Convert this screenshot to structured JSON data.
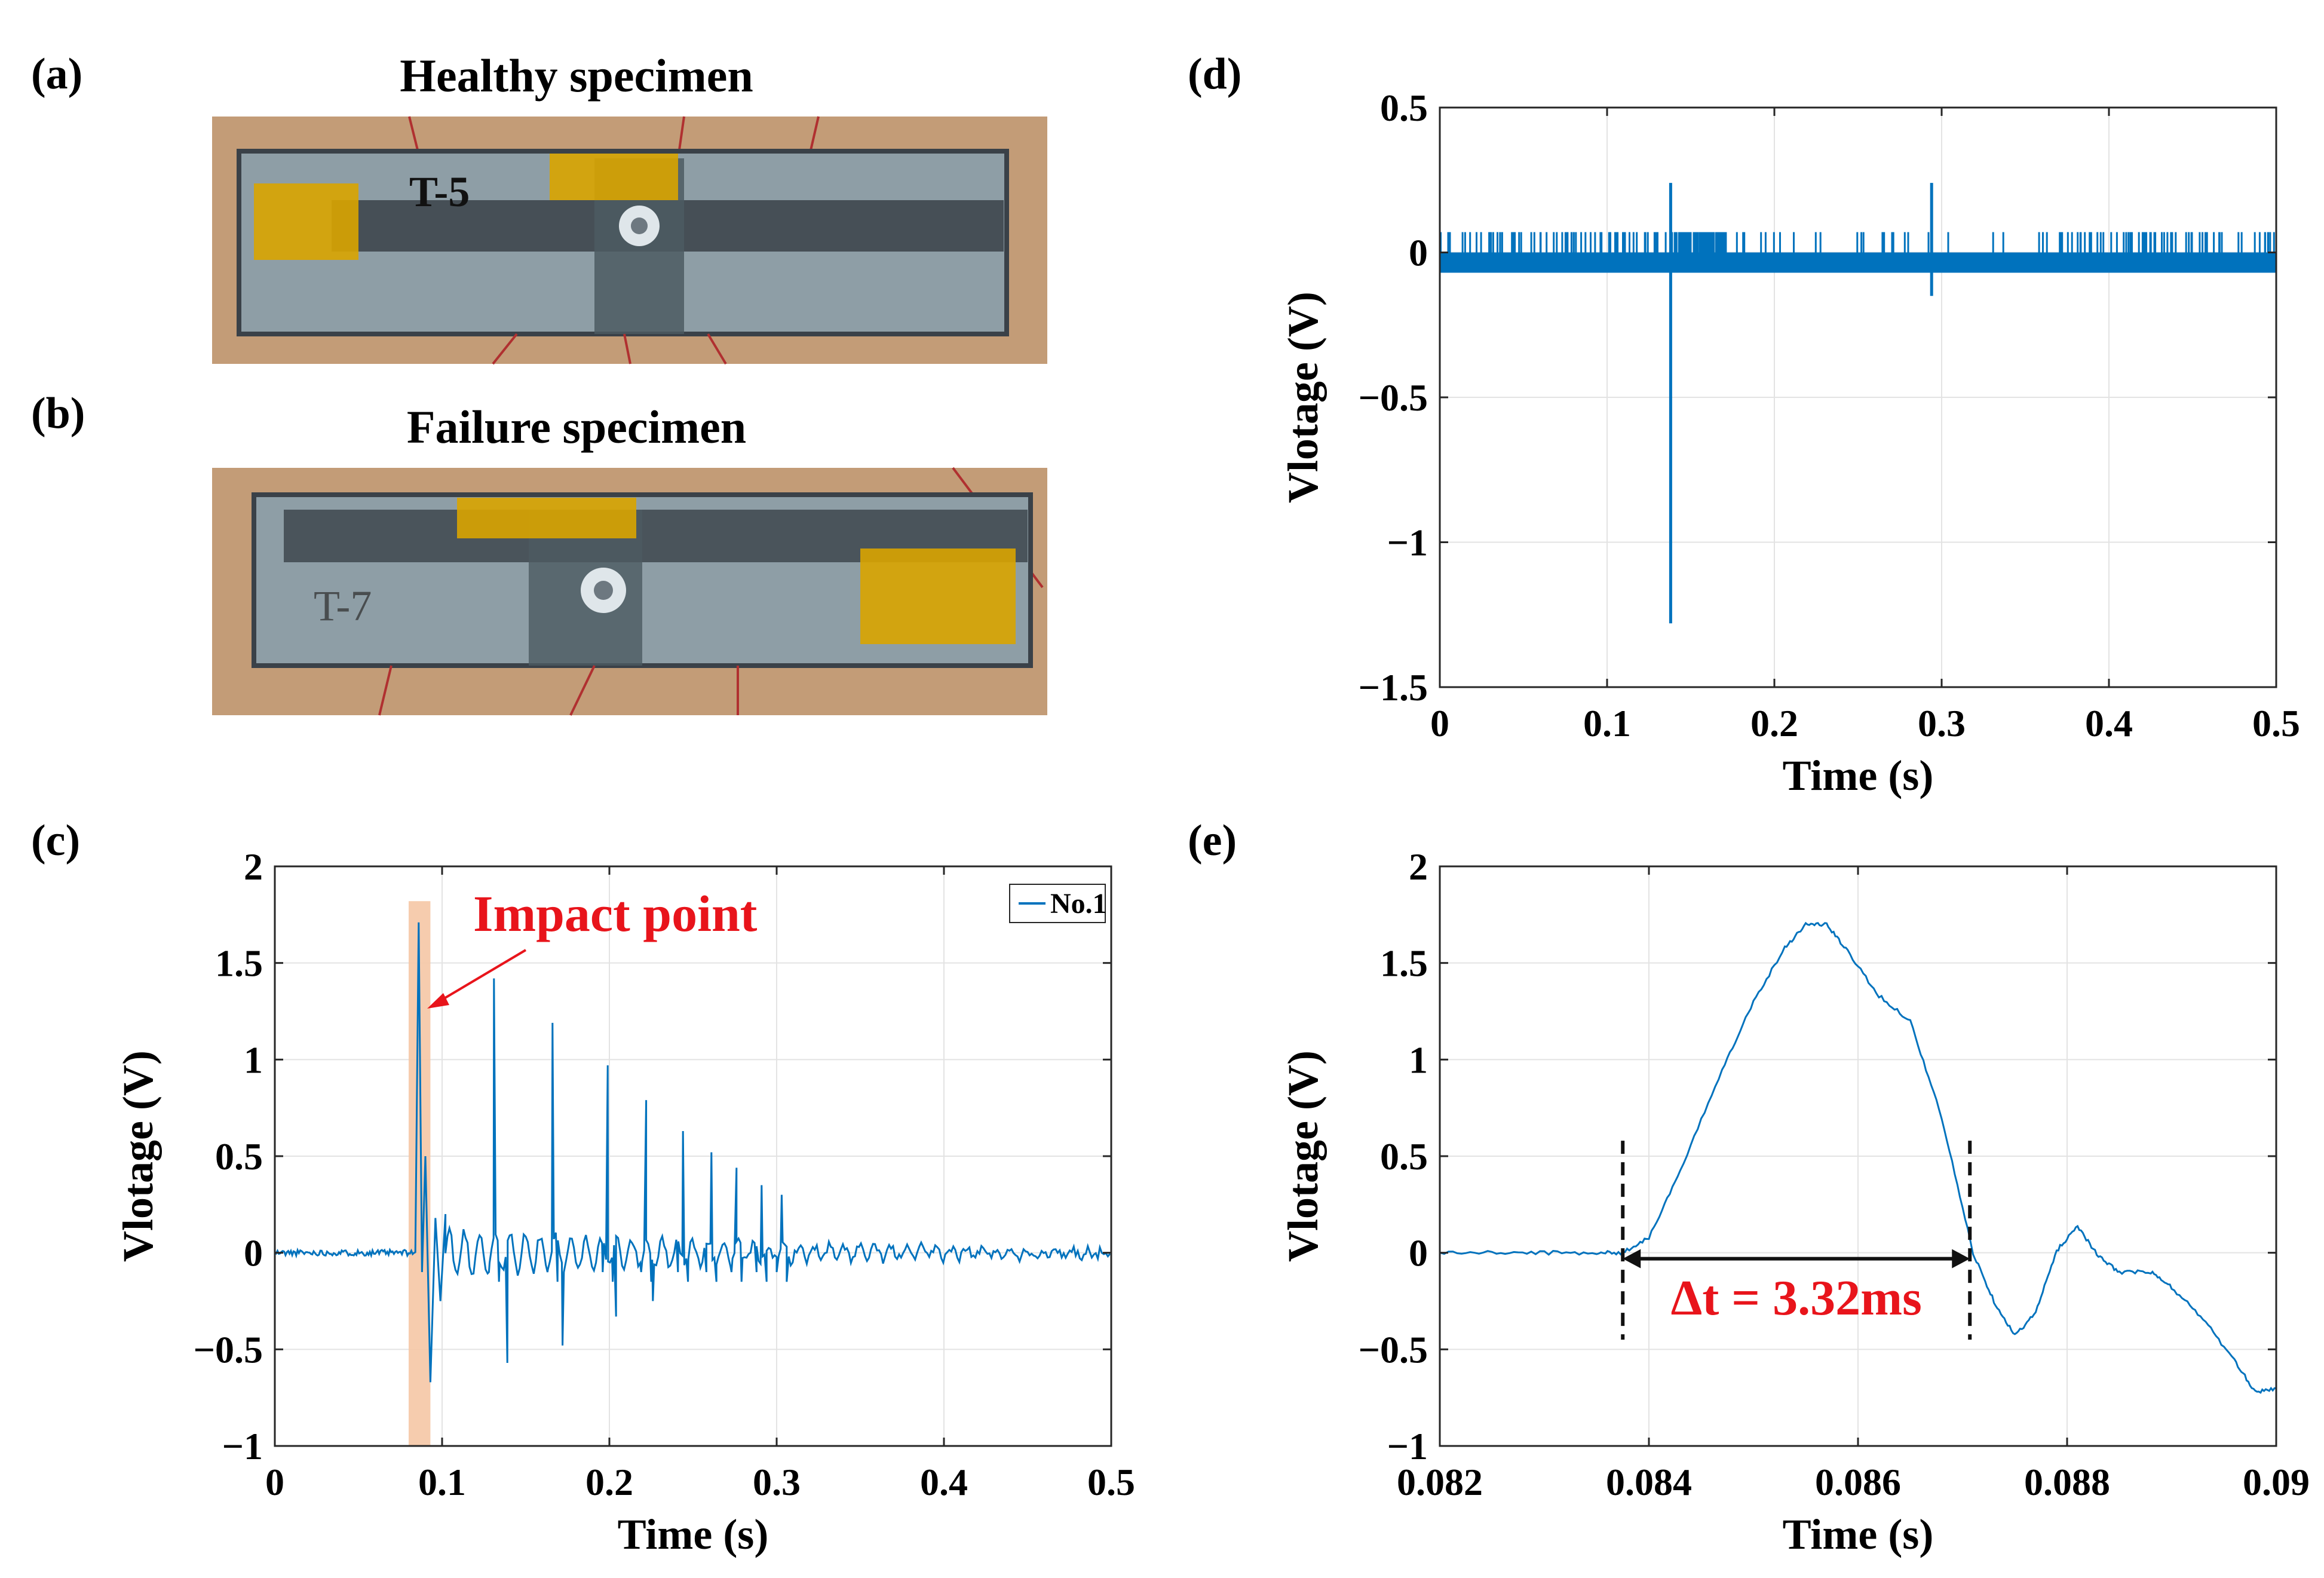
{
  "panels": {
    "a": {
      "label": "(a)",
      "title": "Healthy specimen",
      "marking": "T-5"
    },
    "b": {
      "label": "(b)",
      "title": "Failure specimen",
      "marking": "T-7"
    },
    "c": {
      "label": "(c)"
    },
    "d": {
      "label": "(d)"
    },
    "e": {
      "label": "(e)"
    }
  },
  "colors": {
    "signal": "#0072BD",
    "highlight": "#F5C6A5",
    "annotation": "#E8141B",
    "tape": "#D9A400",
    "table": "#C9A27C",
    "glass": "#8E9EA6",
    "strip": "#3A4148"
  },
  "chart_data": [
    {
      "id": "d",
      "type": "line",
      "xlabel": "Time (s)",
      "ylabel": "Vlotage (V)",
      "xlim": [
        0,
        0.5
      ],
      "ylim": [
        -1.5,
        0.5
      ],
      "xticks": [
        0,
        0.1,
        0.2,
        0.3,
        0.4,
        0.5
      ],
      "xtick_labels": [
        "0",
        "0.1",
        "0.2",
        "0.3",
        "0.4",
        "0.5"
      ],
      "yticks": [
        -1.5,
        -1,
        -0.5,
        0,
        0.5
      ],
      "ytick_labels": [
        "−1.5",
        "−1",
        "−0.5",
        "0",
        "0.5"
      ],
      "grid": true,
      "series": [
        {
          "baseline_band": [
            -0.07,
            0.0
          ],
          "positive_spike_level": 0.07,
          "spikes": [
            {
              "x": 0.138,
              "ymin": -1.28,
              "ymax": 0.24
            },
            {
              "x": 0.294,
              "ymin": -0.15,
              "ymax": 0.24
            }
          ]
        }
      ]
    },
    {
      "id": "c",
      "type": "line",
      "xlabel": "Time (s)",
      "ylabel": "Vlotage (V)",
      "xlim": [
        0,
        0.5
      ],
      "ylim": [
        -1,
        2
      ],
      "xticks": [
        0,
        0.1,
        0.2,
        0.3,
        0.4,
        0.5
      ],
      "xtick_labels": [
        "0",
        "0.1",
        "0.2",
        "0.3",
        "0.4",
        "0.5"
      ],
      "yticks": [
        -1,
        -0.5,
        0,
        0.5,
        1,
        1.5,
        2
      ],
      "ytick_labels": [
        "−1",
        "−0.5",
        "0",
        "0.5",
        "1",
        "1.5",
        "2"
      ],
      "grid": true,
      "legend": {
        "entries": [
          "No.1"
        ],
        "position": "top-right"
      },
      "highlight_range": [
        0.08,
        0.093
      ],
      "annotation": {
        "text": "Impact point"
      },
      "series": [
        {
          "name": "No.1",
          "onset": 0.084,
          "peaks": [
            {
              "x": 0.086,
              "y": 1.71
            },
            {
              "x": 0.131,
              "y": 1.42
            },
            {
              "x": 0.166,
              "y": 1.19
            },
            {
              "x": 0.199,
              "y": 0.97
            },
            {
              "x": 0.222,
              "y": 0.79
            },
            {
              "x": 0.244,
              "y": 0.63
            },
            {
              "x": 0.261,
              "y": 0.52
            },
            {
              "x": 0.276,
              "y": 0.44
            },
            {
              "x": 0.291,
              "y": 0.35
            },
            {
              "x": 0.303,
              "y": 0.3
            }
          ],
          "troughs": [
            {
              "x": 0.093,
              "y": -0.67
            },
            {
              "x": 0.139,
              "y": -0.57
            },
            {
              "x": 0.172,
              "y": -0.48
            },
            {
              "x": 0.204,
              "y": -0.33
            },
            {
              "x": 0.226,
              "y": -0.25
            }
          ]
        }
      ]
    },
    {
      "id": "e",
      "type": "line",
      "xlabel": "Time (s)",
      "ylabel": "Vlotage (V)",
      "xlim": [
        0.082,
        0.09
      ],
      "ylim": [
        -1,
        2
      ],
      "xticks": [
        0.082,
        0.084,
        0.086,
        0.088,
        0.09
      ],
      "xtick_labels": [
        "0.082",
        "0.084",
        "0.086",
        "0.088",
        "0.09"
      ],
      "yticks": [
        -1,
        -0.5,
        0,
        0.5,
        1,
        1.5,
        2
      ],
      "ytick_labels": [
        "−1",
        "−0.5",
        "0",
        "0.5",
        "1",
        "1.5",
        "2"
      ],
      "grid": true,
      "series": [
        {
          "x": [
            0.082,
            0.0825,
            0.083,
            0.0835,
            0.08375,
            0.084,
            0.0843,
            0.0847,
            0.085,
            0.0853,
            0.0855,
            0.0857,
            0.0859,
            0.0862,
            0.0865,
            0.0868,
            0.0871,
            0.0873,
            0.0875,
            0.0877,
            0.0879,
            0.0881,
            0.0883,
            0.0885,
            0.0888,
            0.089,
            0.0893,
            0.0896,
            0.0898,
            0.09
          ],
          "y": [
            0.0,
            0.0,
            0.0,
            0.0,
            0.0,
            0.08,
            0.42,
            0.95,
            1.3,
            1.58,
            1.7,
            1.7,
            1.56,
            1.33,
            1.2,
            0.7,
            0.0,
            -0.25,
            -0.43,
            -0.31,
            0.01,
            0.14,
            -0.02,
            -0.1,
            -0.1,
            -0.18,
            -0.34,
            -0.56,
            -0.72,
            -0.7
          ]
        }
      ],
      "delta_t": {
        "x_start": 0.08375,
        "x_end": 0.08707,
        "y": 0,
        "label": "Δt = 3.32ms"
      }
    }
  ]
}
